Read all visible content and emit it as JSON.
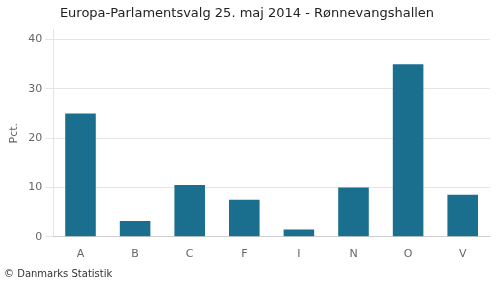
{
  "chart_data": {
    "type": "bar",
    "title": "Europa-Parlamentsvalg 25. maj 2014 - Rønnevangshallen",
    "ylabel": "Pct.",
    "footer": "© Danmarks Statistik",
    "categories": [
      "A",
      "B",
      "C",
      "F",
      "I",
      "N",
      "O",
      "V"
    ],
    "values": [
      25.0,
      3.2,
      10.5,
      7.5,
      1.5,
      10.0,
      35.0,
      8.5
    ],
    "color": "#1a6e8e",
    "ylim": [
      0,
      42
    ],
    "yticks": [
      0,
      10,
      20,
      30,
      40
    ],
    "grid": true
  }
}
